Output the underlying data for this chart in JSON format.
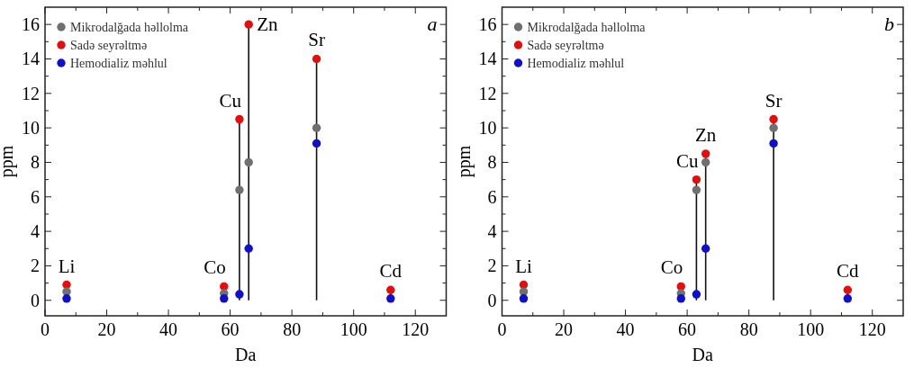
{
  "chart_data": [
    {
      "type": "scatter",
      "xlabel": "Da",
      "ylabel": "ppm",
      "xlim": [
        0,
        130
      ],
      "ylim": [
        -0.9,
        17
      ],
      "xticks": [
        0,
        {
          "value": 10,
          "label": null
        },
        20,
        {
          "value": 30,
          "label": null
        },
        40,
        {
          "value": 50,
          "label": null
        },
        60,
        {
          "value": 70,
          "label": null
        },
        80,
        {
          "value": 90,
          "label": null
        },
        100,
        {
          "value": 110,
          "label": null
        },
        120
      ],
      "yticks": [
        0,
        {
          "value": 1,
          "label": null
        },
        2,
        {
          "value": 3,
          "label": null
        },
        4,
        {
          "value": 5,
          "label": null
        },
        6,
        {
          "value": 7,
          "label": null
        },
        8,
        {
          "value": 9,
          "label": null
        },
        10,
        {
          "value": 11,
          "label": null
        },
        12,
        {
          "value": 13,
          "label": null
        },
        14,
        {
          "value": 15,
          "label": null
        },
        16
      ],
      "x": [
        7,
        58,
        63,
        66,
        88,
        112
      ],
      "legend": "top left",
      "marker": "circle",
      "series": [
        {
          "name": "Mikrodalğada həllolma",
          "color": "#707070",
          "values": [
            0.5,
            0.4,
            6.4,
            8,
            10,
            null
          ]
        },
        {
          "name": "Sadə seyrəltmə",
          "color": "#e01010",
          "type": "lollipop",
          "values": [
            0.9,
            0.8,
            10.5,
            16,
            14,
            0.6
          ]
        },
        {
          "name": "Hemodializ məhlul",
          "color": "#1010c8",
          "values": [
            0.1,
            0.1,
            0.35,
            3,
            9.1,
            0.1
          ]
        }
      ],
      "annotations": [
        {
          "text": "Li",
          "x": 7,
          "y": 0.9
        },
        {
          "text": "Co",
          "x": 58,
          "y": 0.8
        },
        {
          "text": "Cu",
          "x": 63,
          "y": 10.5
        },
        {
          "text": "Zn",
          "x": 66,
          "y": 16
        },
        {
          "text": "Sr",
          "x": 88,
          "y": 14
        },
        {
          "text": "Cd",
          "x": 112,
          "y": 0.6
        },
        "a"
      ]
    },
    {
      "type": "scatter",
      "xlabel": "Da",
      "ylabel": "ppm",
      "xlim": [
        0,
        130
      ],
      "ylim": [
        -0.9,
        17
      ],
      "xticks": [
        0,
        {
          "value": 10,
          "label": null
        },
        20,
        {
          "value": 30,
          "label": null
        },
        40,
        {
          "value": 50,
          "label": null
        },
        60,
        {
          "value": 70,
          "label": null
        },
        80,
        {
          "value": 90,
          "label": null
        },
        100,
        {
          "value": 110,
          "label": null
        },
        120
      ],
      "yticks": [
        0,
        {
          "value": 1,
          "label": null
        },
        2,
        {
          "value": 3,
          "label": null
        },
        4,
        {
          "value": 5,
          "label": null
        },
        6,
        {
          "value": 7,
          "label": null
        },
        8,
        {
          "value": 9,
          "label": null
        },
        10,
        {
          "value": 11,
          "label": null
        },
        12,
        {
          "value": 13,
          "label": null
        },
        14,
        {
          "value": 15,
          "label": null
        },
        16
      ],
      "x": [
        7,
        58,
        63,
        66,
        88,
        112
      ],
      "legend": "top left",
      "marker": "circle",
      "series": [
        {
          "name": "Mikrodalğada həllolma",
          "color": "#707070",
          "values": [
            0.5,
            0.4,
            6.4,
            8,
            10,
            null
          ]
        },
        {
          "name": "Sadə seyrəltmə",
          "color": "#e01010",
          "type": "lollipop",
          "values": [
            0.9,
            0.8,
            7,
            8.5,
            10.5,
            0.6
          ]
        },
        {
          "name": "Hemodializ məhlul",
          "color": "#1010c8",
          "values": [
            0.1,
            0.1,
            0.35,
            3,
            9.1,
            0.1
          ]
        }
      ],
      "annotations": [
        {
          "text": "Li",
          "x": 7,
          "y": 0.9
        },
        {
          "text": "Co",
          "x": 58,
          "y": 0.8
        },
        {
          "text": "Cu",
          "x": 63,
          "y": 7
        },
        {
          "text": "Zn",
          "x": 66,
          "y": 8.5
        },
        {
          "text": "Sr",
          "x": 88,
          "y": 10.5
        },
        {
          "text": "Cd",
          "x": 112,
          "y": 0.6
        },
        "b"
      ]
    }
  ]
}
